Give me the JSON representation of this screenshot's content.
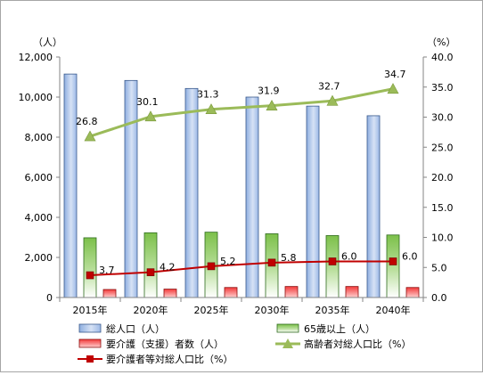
{
  "chart_data": {
    "type": "bar",
    "categories": [
      "2015年",
      "2020年",
      "2025年",
      "2030年",
      "2035年",
      "2040年"
    ],
    "left_axis": {
      "unit": "（人）",
      "min": 0,
      "max": 12000,
      "step": 2000,
      "ticks": [
        "0",
        "2,000",
        "4,000",
        "6,000",
        "8,000",
        "10,000",
        "12,000"
      ]
    },
    "right_axis": {
      "unit": "（%）",
      "min": 0,
      "max": 40,
      "step": 5,
      "ticks": [
        "0.0",
        "5.0",
        "10.0",
        "15.0",
        "20.0",
        "25.0",
        "30.0",
        "35.0",
        "40.0"
      ]
    },
    "grid": false,
    "legend_position": "bottom",
    "series": [
      {
        "name": "総人口（人）",
        "kind": "bar",
        "axis": "left",
        "color": "#4472c4",
        "values": [
          11150,
          10830,
          10430,
          10000,
          9550,
          9070
        ]
      },
      {
        "name": "65歳以上（人）",
        "kind": "bar",
        "axis": "left",
        "color": "#70ad47",
        "values": [
          2980,
          3230,
          3260,
          3180,
          3090,
          3120
        ]
      },
      {
        "name": "要介護（支援）者数（人）",
        "kind": "bar",
        "axis": "left",
        "color": "#e83030",
        "values": [
          400,
          420,
          500,
          550,
          550,
          500
        ]
      },
      {
        "name": "高齢者対総人口比（%）",
        "kind": "line",
        "axis": "right",
        "color": "#9bbb59",
        "marker": "triangle",
        "values": [
          26.8,
          30.1,
          31.3,
          31.9,
          32.7,
          34.7
        ],
        "labels": [
          "26.8",
          "30.1",
          "31.3",
          "31.9",
          "32.7",
          "34.7"
        ]
      },
      {
        "name": "要介護者等対総人口比（%）",
        "kind": "line",
        "axis": "right",
        "color": "#c00000",
        "marker": "square",
        "values": [
          3.7,
          4.2,
          5.2,
          5.8,
          6.0,
          6.0
        ],
        "labels": [
          "3.7",
          "4.2",
          "5.2",
          "5.8",
          "6.0",
          "6.0"
        ]
      }
    ]
  }
}
